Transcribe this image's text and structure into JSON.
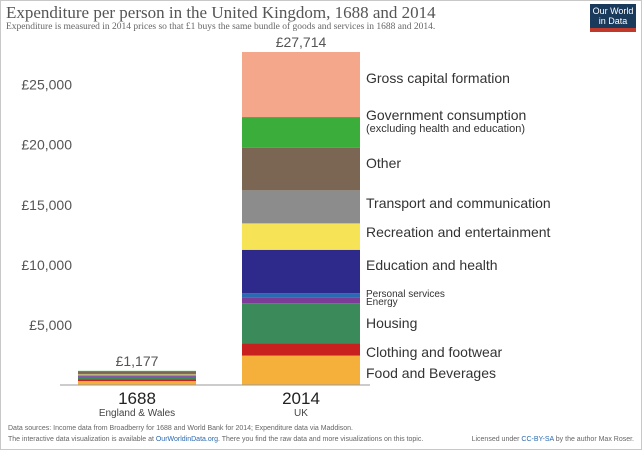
{
  "title": "Expenditure per person in the United Kingdom, 1688 and 2014",
  "subtitle": "Expenditure is measured in 2014 prices so that £1 buys the same bundle of goods and services in 1688 and 2014.",
  "logo": {
    "line1": "Our World",
    "line2": "in Data"
  },
  "colors": {
    "food": "#f4b03a",
    "clothing": "#c8201f",
    "housing": "#3b8a5a",
    "energy": "#7d3c98",
    "personal": "#2a6ab1",
    "education": "#2d2a8c",
    "recreation": "#f7e356",
    "transport": "#8c8c8c",
    "other": "#7a6652",
    "government": "#3aad3a",
    "capital": "#f4a78a",
    "text": "#333333",
    "axis": "#555555"
  },
  "chart_data": {
    "type": "bar",
    "stacked": true,
    "categories": [
      "1688",
      "2014"
    ],
    "category_sublabels": [
      "England & Wales",
      "UK"
    ],
    "totals_labels": [
      "£1,177",
      "£27,714"
    ],
    "ylim": [
      0,
      27714
    ],
    "yticks": [
      5000,
      10000,
      15000,
      20000,
      25000
    ],
    "ytick_labels": [
      "£5,000",
      "£10,000",
      "£15,000",
      "£20,000",
      "£25,000"
    ],
    "series": [
      {
        "key": "food",
        "name": "Food and Beverages",
        "values": [
          330,
          2450
        ]
      },
      {
        "key": "clothing",
        "name": "Clothing and footwear",
        "values": [
          160,
          1000
        ]
      },
      {
        "key": "housing",
        "name": "Housing",
        "values": [
          180,
          3350
        ]
      },
      {
        "key": "energy",
        "name": "Energy",
        "values": [
          70,
          450
        ]
      },
      {
        "key": "personal",
        "name": "Personal services",
        "values": [
          40,
          400
        ]
      },
      {
        "key": "education",
        "name": "Education and health",
        "values": [
          30,
          3600
        ]
      },
      {
        "key": "recreation",
        "name": "Recreation and entertainment",
        "values": [
          60,
          2200
        ]
      },
      {
        "key": "transport",
        "name": "Transport and communication",
        "values": [
          50,
          2750
        ]
      },
      {
        "key": "other",
        "name": "Other",
        "values": [
          200,
          3550
        ]
      },
      {
        "key": "government",
        "name": "Government consumption",
        "sublabel": "(excluding health and education)",
        "values": [
          57,
          2550
        ]
      },
      {
        "key": "capital",
        "name": "Gross capital formation",
        "values": [
          0,
          5414
        ]
      }
    ]
  },
  "footer": {
    "source_line1": "Data sources: Income data from Broadberry for 1688 and World Bank for 2014; Expenditure data via Maddison.",
    "source_line2_prefix": "The interactive data visualization is available at ",
    "source_line2_link": "OurWorldinData.org",
    "source_line2_suffix": ". There you find the raw data and more visualizations on this topic.",
    "license_prefix": "Licensed under ",
    "license_link": "CC-BY-SA",
    "license_suffix": " by the author Max Roser."
  }
}
